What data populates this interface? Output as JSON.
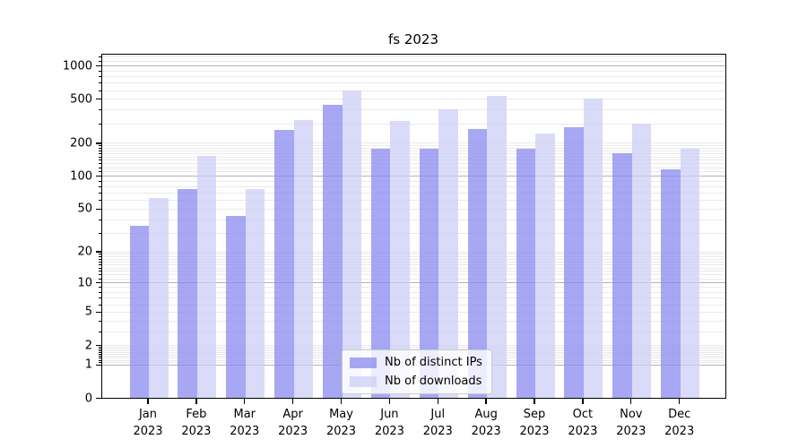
{
  "chart_data": {
    "type": "bar",
    "title": "fs 2023",
    "categories": [
      "Jan 2023",
      "Feb 2023",
      "Mar 2023",
      "Apr 2023",
      "May 2023",
      "Jun 2023",
      "Jul 2023",
      "Aug 2023",
      "Sep 2023",
      "Oct 2023",
      "Nov 2023",
      "Dec 2023"
    ],
    "series": [
      {
        "name": "Nb of distinct IPs",
        "color": "#8989f0",
        "alpha": 0.75,
        "values": [
          36,
          78,
          44,
          270,
          458,
          180,
          182,
          275,
          181,
          284,
          164,
          117
        ]
      },
      {
        "name": "Nb of downloads",
        "color": "#cecef7",
        "alpha": 0.75,
        "values": [
          65,
          157,
          78,
          328,
          616,
          326,
          417,
          550,
          251,
          521,
          306,
          181
        ]
      }
    ],
    "yscale": "log1p",
    "yticks": [
      0,
      1,
      2,
      5,
      10,
      20,
      50,
      100,
      200,
      500,
      1000
    ],
    "ylim": [
      0,
      1290
    ],
    "grid": true,
    "legend_position": "inside-bottom-center",
    "colors": {
      "grid_major": "#b3b3b3",
      "grid_minor": "#eaeaea",
      "spine": "#000000",
      "text": "#000000"
    }
  }
}
